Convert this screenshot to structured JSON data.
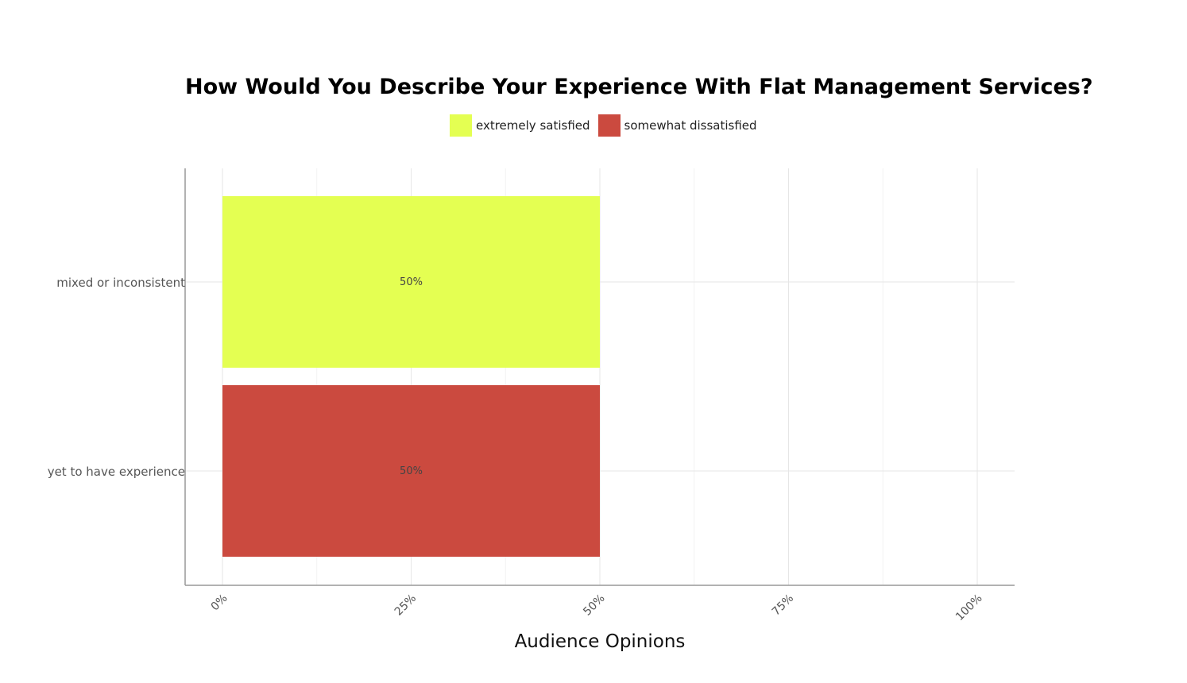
{
  "chart_data": {
    "type": "bar",
    "orientation": "horizontal",
    "title": "How Would You Describe Your Experience With Flat Management Services?",
    "xlabel": "Audience Opinions",
    "ylabel": "",
    "categories": [
      "mixed or inconsistent",
      "yet to have experience"
    ],
    "series": [
      {
        "name": "extremely satisfied",
        "color": "#e4ff52",
        "values": [
          50,
          0
        ]
      },
      {
        "name": "somewhat dissatisfied",
        "color": "#cb4a3f",
        "values": [
          0,
          50
        ]
      }
    ],
    "data_labels": [
      "50%",
      "50%"
    ],
    "xlim": [
      0,
      100
    ],
    "x_ticks": [
      "0%",
      "25%",
      "50%",
      "75%",
      "100%"
    ],
    "grid": true,
    "legend_position": "top-center"
  }
}
